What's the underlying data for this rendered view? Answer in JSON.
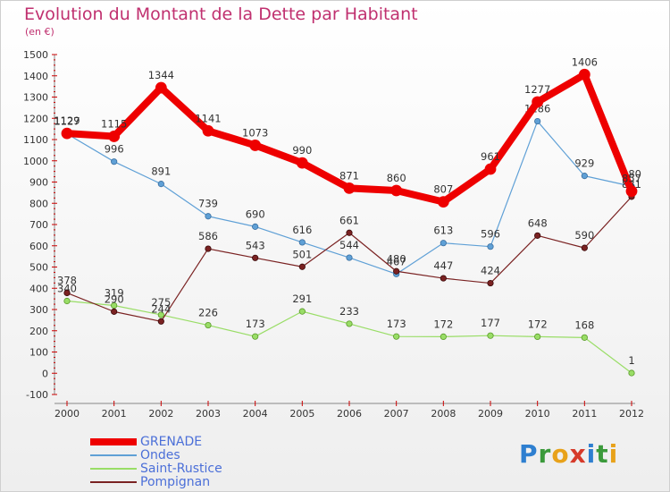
{
  "title": "Evolution du Montant de la Dette par Habitant",
  "subtitle": "(en €)",
  "brand": {
    "text": "Proxiti",
    "letters": [
      {
        "ch": "P",
        "color": "#2e7fd0"
      },
      {
        "ch": "r",
        "color": "#3b9a3b"
      },
      {
        "ch": "o",
        "color": "#e8a21a"
      },
      {
        "ch": "x",
        "color": "#d63a2a"
      },
      {
        "ch": "i",
        "color": "#2e7fd0"
      },
      {
        "ch": "t",
        "color": "#3b9a3b"
      },
      {
        "ch": "i",
        "color": "#e8a21a"
      }
    ]
  },
  "chart_data": {
    "type": "line",
    "title": "Evolution du Montant de la Dette par Habitant",
    "subtitle": "(en €)",
    "xlabel": "",
    "ylabel": "",
    "ylim": [
      -100,
      1500
    ],
    "yticks": [
      -100,
      0,
      100,
      200,
      300,
      400,
      500,
      600,
      700,
      800,
      900,
      1000,
      1100,
      1200,
      1300,
      1400,
      1500
    ],
    "grid": false,
    "legend_position": "bottom-left",
    "categories": [
      "2000",
      "2001",
      "2002",
      "2003",
      "2004",
      "2005",
      "2006",
      "2007",
      "2008",
      "2009",
      "2010",
      "2011",
      "2012"
    ],
    "series": [
      {
        "name": "GRENADE",
        "color": "#ee0000",
        "width": 8,
        "values": [
          1129,
          1115,
          1344,
          1141,
          1073,
          990,
          871,
          860,
          807,
          961,
          1277,
          1406,
          857
        ]
      },
      {
        "name": "Ondes",
        "color": "#5fa0d6",
        "width": 1.2,
        "values": [
          1127,
          996,
          891,
          739,
          690,
          616,
          544,
          467,
          613,
          596,
          1186,
          929,
          880
        ]
      },
      {
        "name": "Saint-Rustice",
        "color": "#99dd66",
        "width": 1.2,
        "values": [
          340,
          319,
          275,
          226,
          173,
          291,
          233,
          173,
          172,
          177,
          172,
          168,
          1
        ]
      },
      {
        "name": "Pompignan",
        "color": "#7a2222",
        "width": 1.2,
        "values": [
          378,
          290,
          244,
          586,
          543,
          501,
          661,
          480,
          447,
          424,
          648,
          590,
          831
        ]
      }
    ]
  }
}
